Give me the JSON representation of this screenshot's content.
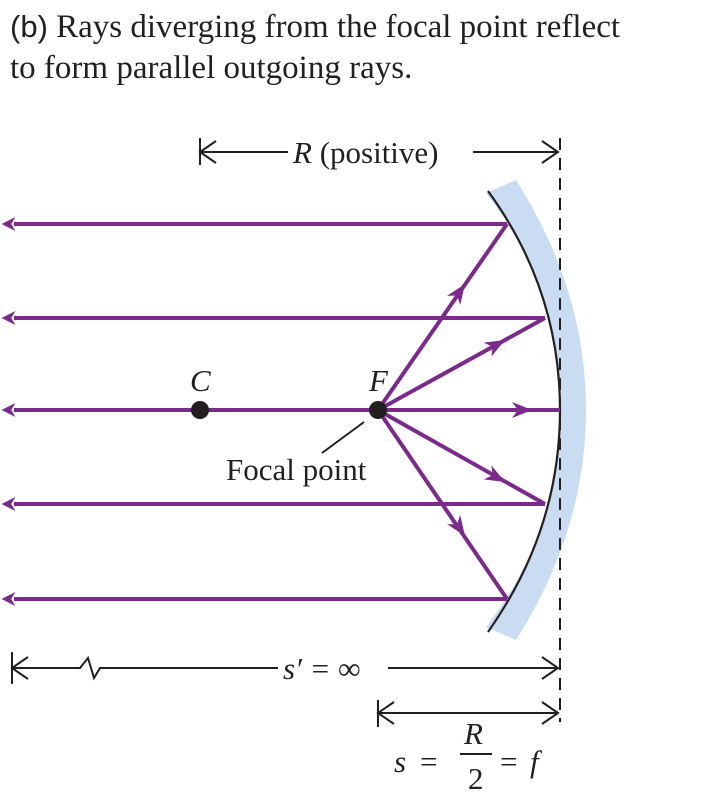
{
  "caption": {
    "tag": "(b)",
    "line1": " Rays diverging from the focal point reflect",
    "line2": "to form parallel outgoing rays."
  },
  "labels": {
    "radius_symbol": "R",
    "radius_note": " (positive)",
    "center": "C",
    "focus": "F",
    "focal_point": "Focal point",
    "image_distance": "s′ = ∞",
    "object_s": "s",
    "equals1": "=",
    "frac_num": "R",
    "frac_den": "2",
    "equals2": "=",
    "focal_length": "f"
  },
  "colors": {
    "ray": "#7b2a8c",
    "mirror_fill": "#c9dcf2",
    "ink": "#231f20",
    "background": "#ffffff"
  }
}
